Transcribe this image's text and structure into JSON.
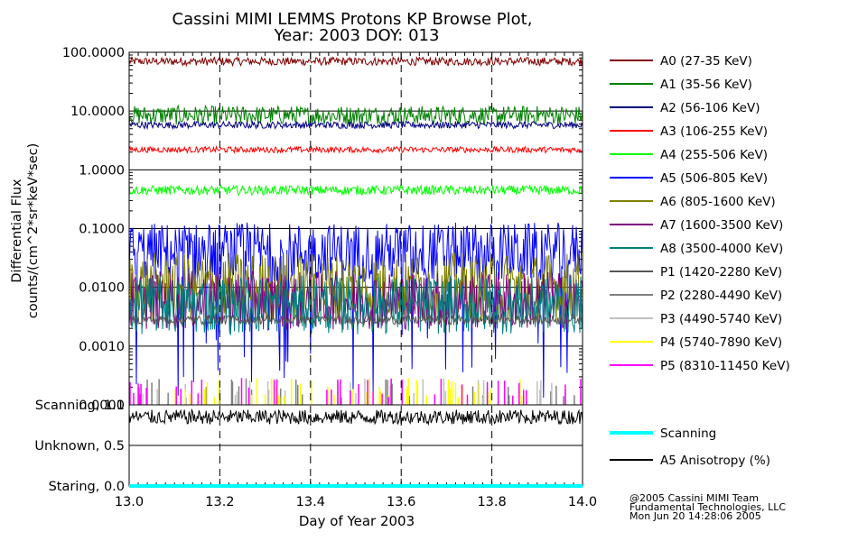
{
  "chart_data": {
    "type": "line",
    "title": "Cassini MIMI LEMMS Protons KP Browse Plot,",
    "subtitle": "Year: 2003 DOY: 013",
    "xlabel": "Day of Year 2003",
    "ylabel_line1": "Differential Flux",
    "ylabel_line2": "counts/(cm^2*sr*keV*sec)",
    "xlim": [
      13.0,
      14.0
    ],
    "x_ticks": [
      "13.0",
      "13.2",
      "13.4",
      "13.6",
      "13.8",
      "14.0"
    ],
    "y_scale": "log",
    "ylim": [
      0.0001,
      100.0
    ],
    "y_ticks": [
      "100.0000",
      "10.0000",
      "1.0000",
      "0.1000",
      "0.0100",
      "0.0010",
      "0.0001"
    ],
    "y_tick_values": [
      100,
      10,
      1,
      0.1,
      0.01,
      0.001,
      0.0001
    ],
    "status_ticks": [
      "Scanning, 1.0",
      "Unknown, 0.5",
      "Staring, 0.0"
    ],
    "status_tick_values": [
      1.0,
      0.5,
      0.0
    ],
    "series": [
      {
        "name": "A0 (27-35 KeV)",
        "color": "#800000",
        "level": 70,
        "noise": 0.07
      },
      {
        "name": "A1 (35-56 KeV)",
        "color": "#008000",
        "level": 8.5,
        "noise": 0.16
      },
      {
        "name": "A2 (56-106 KeV)",
        "color": "#000080",
        "level": 5.8,
        "noise": 0.06
      },
      {
        "name": "A3 (106-255 KeV)",
        "color": "#ff0000",
        "level": 2.2,
        "noise": 0.05
      },
      {
        "name": "A4 (255-506 KeV)",
        "color": "#00ff00",
        "level": 0.45,
        "noise": 0.08
      },
      {
        "name": "A5 (506-805 KeV)",
        "color": "#0000ff",
        "level": 0.04,
        "noise": 0.5
      },
      {
        "name": "A6 (805-1600 KeV)",
        "color": "#808000",
        "level": 0.01,
        "noise": 0.6
      },
      {
        "name": "A7 (1600-3500 KeV)",
        "color": "#800080",
        "level": 0.006,
        "noise": 0.5
      },
      {
        "name": "A8 (3500-4000 KeV)",
        "color": "#008080",
        "level": 0.005,
        "noise": 0.5
      },
      {
        "name": "P1 (1420-2280 KeV)",
        "color": "#555555",
        "level": 0.0028,
        "noise": 0.08
      },
      {
        "name": "P2 (2280-4490 KeV)",
        "color": "#808080",
        "level": 0.0002,
        "noise": 0.3
      },
      {
        "name": "P3 (4490-5740 KeV)",
        "color": "#c0c0c0",
        "level": 0.00018,
        "noise": 0.3
      },
      {
        "name": "P4 (5740-7890 KeV)",
        "color": "#ffff00",
        "level": 0.00015,
        "noise": 0.3
      },
      {
        "name": "P5 (8310-11450 KeV)",
        "color": "#ff00ff",
        "level": 0.0001,
        "noise": 0.2
      }
    ],
    "status_series": [
      {
        "name": "Scanning",
        "color": "#00ffff",
        "value": 0.0
      },
      {
        "name": "A5 Anisotropy (%)",
        "color": "#000000",
        "value": 0.85
      }
    ]
  },
  "footer": {
    "line1": "@2005 Cassini MIMI Team",
    "line2": "Fundamental Technologies, LLC",
    "line3": "Mon Jun 20 14:28:06 2005"
  }
}
